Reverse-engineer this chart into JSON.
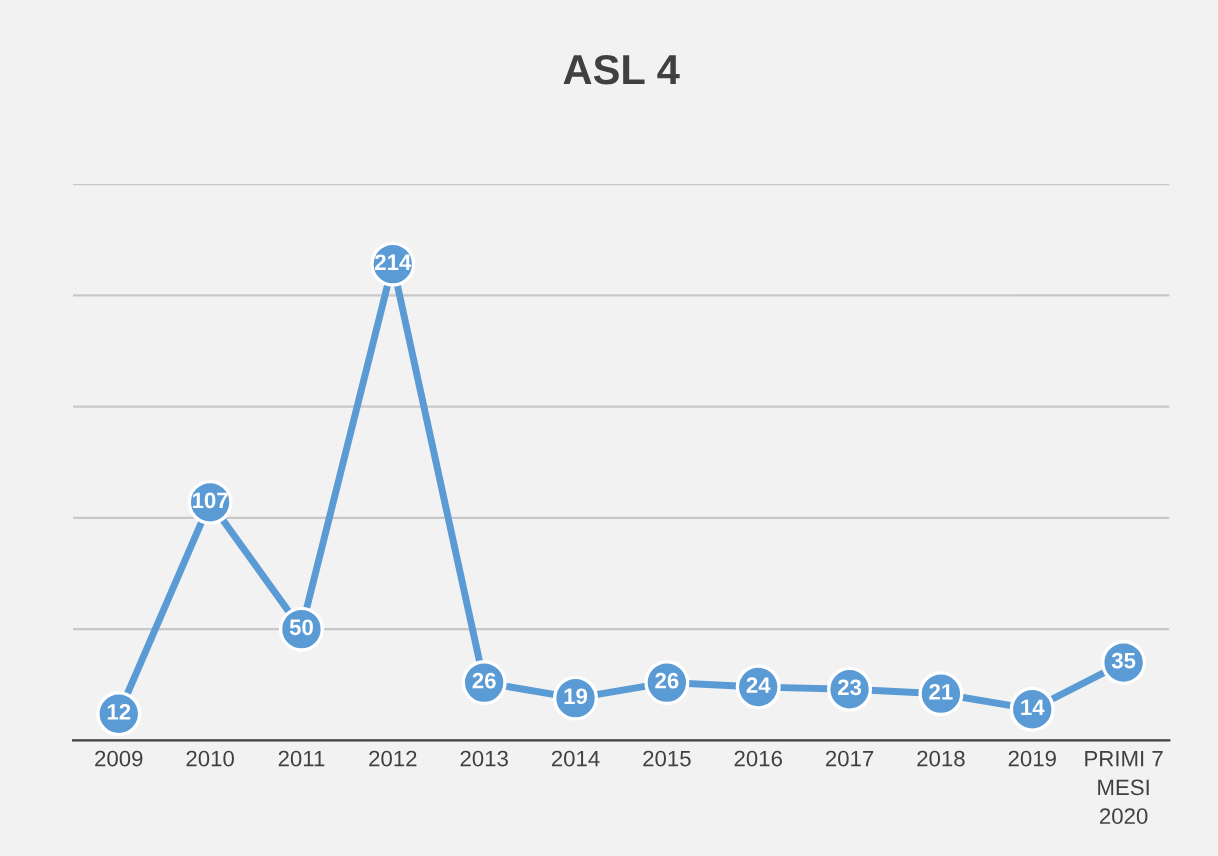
{
  "chart_data": {
    "type": "line",
    "title": "ASL 4",
    "categories": [
      "2009",
      "2010",
      "2011",
      "2012",
      "2013",
      "2014",
      "2015",
      "2016",
      "2017",
      "2018",
      "2019",
      "PRIMI 7\nMESI\n2020"
    ],
    "series": [
      {
        "color": "#5b9bd5",
        "values": [
          12,
          107,
          50,
          214,
          26,
          19,
          26,
          24,
          23,
          21,
          14,
          35
        ]
      }
    ],
    "ylim": [
      0,
      250
    ],
    "yticks": [
      {
        "value": 0,
        "label": null
      },
      {
        "value": 50,
        "label": null
      },
      {
        "value": 100,
        "label": null
      },
      {
        "value": 150,
        "label": null
      },
      {
        "value": 200,
        "label": null
      },
      {
        "value": 250,
        "label": null
      }
    ],
    "tick_labels": "x",
    "grid": "y",
    "data_labels": true,
    "marker": "circle",
    "line_style": "solid"
  }
}
